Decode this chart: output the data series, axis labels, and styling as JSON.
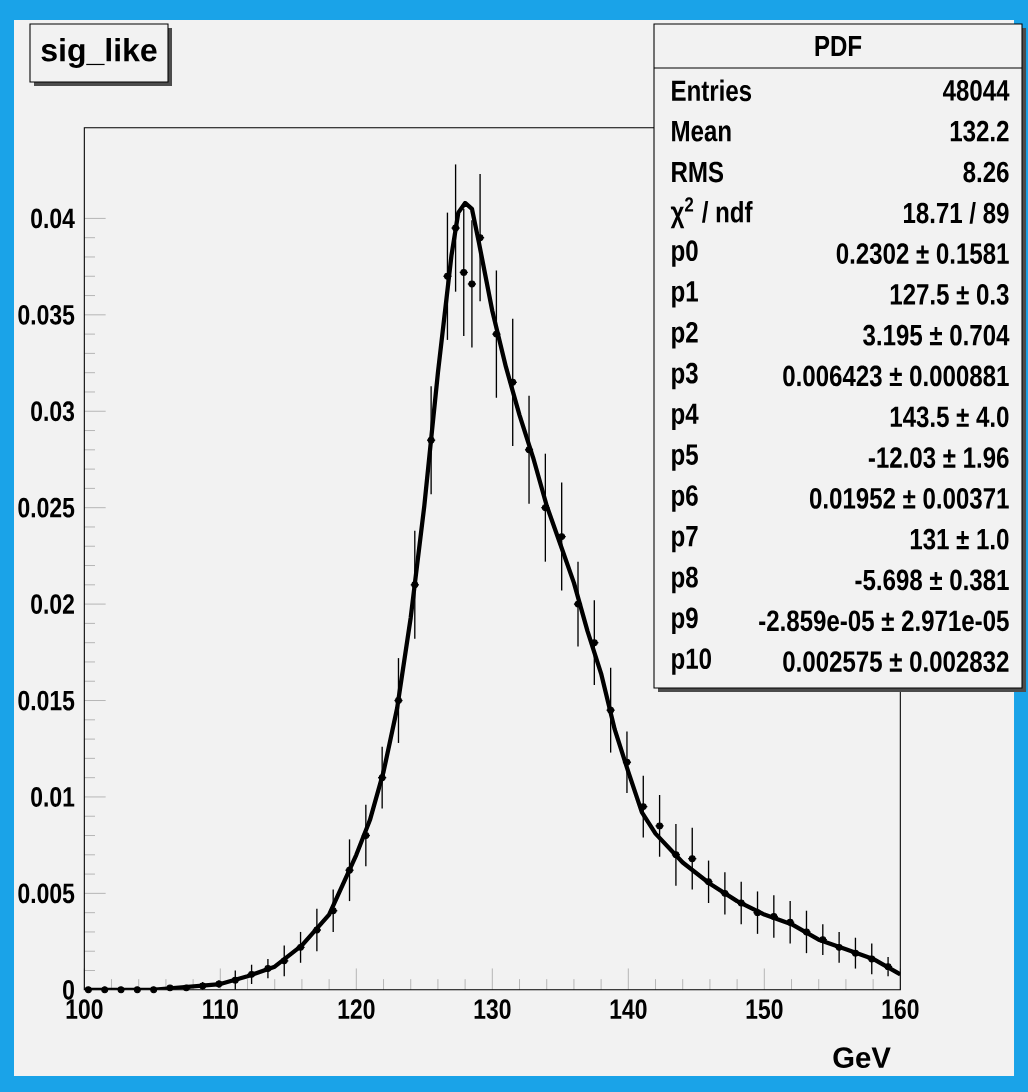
{
  "chart_data": {
    "type": "scatter",
    "title": "sig_like",
    "xlabel": "GeV",
    "xlim": [
      100,
      160
    ],
    "xticks": [
      100,
      110,
      120,
      130,
      140,
      150,
      160
    ],
    "ylim": [
      0,
      0.0447
    ],
    "yticks": [
      0,
      0.005,
      0.01,
      0.015,
      0.02,
      0.025,
      0.03,
      0.035,
      0.04
    ],
    "series": [
      {
        "type": "scatter",
        "color": "#000000",
        "marker": "circle",
        "x": [
          100.3,
          101.5,
          102.7,
          103.9,
          105.1,
          106.3,
          107.5,
          108.7,
          109.9,
          111.1,
          112.3,
          113.5,
          114.7,
          115.9,
          117.1,
          118.3,
          119.5,
          120.7,
          121.9,
          123.1,
          124.3,
          125.5,
          126.7,
          127.3,
          127.9,
          128.5,
          129.1,
          130.3,
          131.5,
          132.7,
          133.9,
          135.1,
          136.3,
          137.5,
          138.7,
          139.9,
          141.1,
          142.3,
          143.5,
          144.7,
          145.9,
          147.1,
          148.3,
          149.5,
          150.7,
          151.9,
          153.1,
          154.3,
          155.5,
          156.7,
          157.9,
          159.1
        ],
        "values": [
          0,
          0,
          0,
          0,
          0,
          0.0001,
          0.0001,
          0.0002,
          0.0003,
          0.0005,
          0.0008,
          0.0011,
          0.0015,
          0.0022,
          0.0031,
          0.0041,
          0.0062,
          0.008,
          0.011,
          0.015,
          0.021,
          0.0285,
          0.037,
          0.0395,
          0.0372,
          0.0366,
          0.039,
          0.034,
          0.0315,
          0.028,
          0.025,
          0.0235,
          0.02,
          0.018,
          0.0145,
          0.0118,
          0.0095,
          0.0085,
          0.007,
          0.0068,
          0.0056,
          0.005,
          0.0045,
          0.004,
          0.0038,
          0.0035,
          0.003,
          0.0026,
          0.0022,
          0.0019,
          0.0016,
          0.0012
        ],
        "errors": [
          null,
          null,
          null,
          null,
          null,
          0.0001,
          0.0001,
          0.0002,
          0.0002,
          0.0005,
          0.0005,
          0.0005,
          0.0008,
          0.0008,
          0.0011,
          0.0011,
          0.0016,
          0.0016,
          0.0016,
          0.0022,
          0.0028,
          0.0028,
          0.0033,
          0.0033,
          0.0033,
          0.0033,
          0.0033,
          0.0033,
          0.0033,
          0.0028,
          0.0028,
          0.0028,
          0.0022,
          0.0022,
          0.0022,
          0.0016,
          0.0016,
          0.0016,
          0.0016,
          0.0016,
          0.0011,
          0.0011,
          0.0011,
          0.0011,
          0.0011,
          0.0011,
          0.0011,
          0.0008,
          0.0008,
          0.0008,
          0.0008,
          0.0005
        ],
        "xerrors": [
          0.3,
          0.3,
          0.3,
          0.3,
          0.3,
          0.3,
          0.3,
          0.3,
          0.3,
          0.3,
          0.3,
          0.3,
          0.3,
          0.3,
          0.3,
          0.3,
          0.3,
          0.3,
          0.3,
          0.3,
          0.3,
          0.3,
          0.3,
          0.3,
          0.3,
          0.3,
          0.3,
          0.3,
          0.3,
          0.3,
          0.3,
          0.3,
          0.3,
          0.3,
          0.3,
          0.3,
          0.3,
          0.3,
          0.3,
          0.3,
          0.3,
          0.3,
          0.3,
          0.3,
          0.3,
          0.3,
          0.3,
          0.3,
          0.3,
          0.3,
          0.3,
          0.3
        ]
      },
      {
        "type": "line",
        "color": "#000000",
        "x": [
          100,
          105,
          110,
          112,
          114,
          116,
          118,
          120,
          121,
          122,
          123,
          124,
          125,
          126,
          127,
          127.5,
          128,
          128.5,
          129,
          130,
          131,
          132,
          133,
          134,
          135,
          136,
          137,
          138,
          139,
          140,
          141,
          142,
          144,
          146,
          148,
          150,
          152,
          154,
          156,
          158,
          160
        ],
        "values": [
          0,
          0,
          0.0003,
          0.0007,
          0.0012,
          0.0023,
          0.0039,
          0.007,
          0.0088,
          0.0113,
          0.0146,
          0.0193,
          0.0251,
          0.032,
          0.0381,
          0.0403,
          0.0408,
          0.0405,
          0.0388,
          0.0352,
          0.0323,
          0.0298,
          0.0276,
          0.0251,
          0.0231,
          0.0211,
          0.0186,
          0.0164,
          0.0135,
          0.0113,
          0.0092,
          0.0081,
          0.0066,
          0.0055,
          0.0046,
          0.0039,
          0.0034,
          0.0026,
          0.0021,
          0.0016,
          0.0008
        ]
      }
    ],
    "annotations": [
      "PDF",
      "Entries",
      "48044",
      "Mean",
      "132.2",
      "RMS",
      "8.26",
      "χ$^{2}$ / ndf",
      "18.71 / 89",
      "p0",
      "0.2302 ± 0.1581",
      "p1",
      "127.5 ± 0.3",
      "p2",
      "3.195 ± 0.704",
      "p3",
      "0.006423 ± 0.000881",
      "p4",
      "143.5 ± 4.0",
      "p5",
      "-12.03 ± 1.96",
      "p6",
      "0.01952 ± 0.00371",
      "p7",
      "131 ± 1.0",
      "p8",
      "-5.698 ± 0.381",
      "p9",
      "-2.859e-05 ± 2.971e-05",
      "p10",
      "0.002575 ± 0.002832"
    ]
  }
}
